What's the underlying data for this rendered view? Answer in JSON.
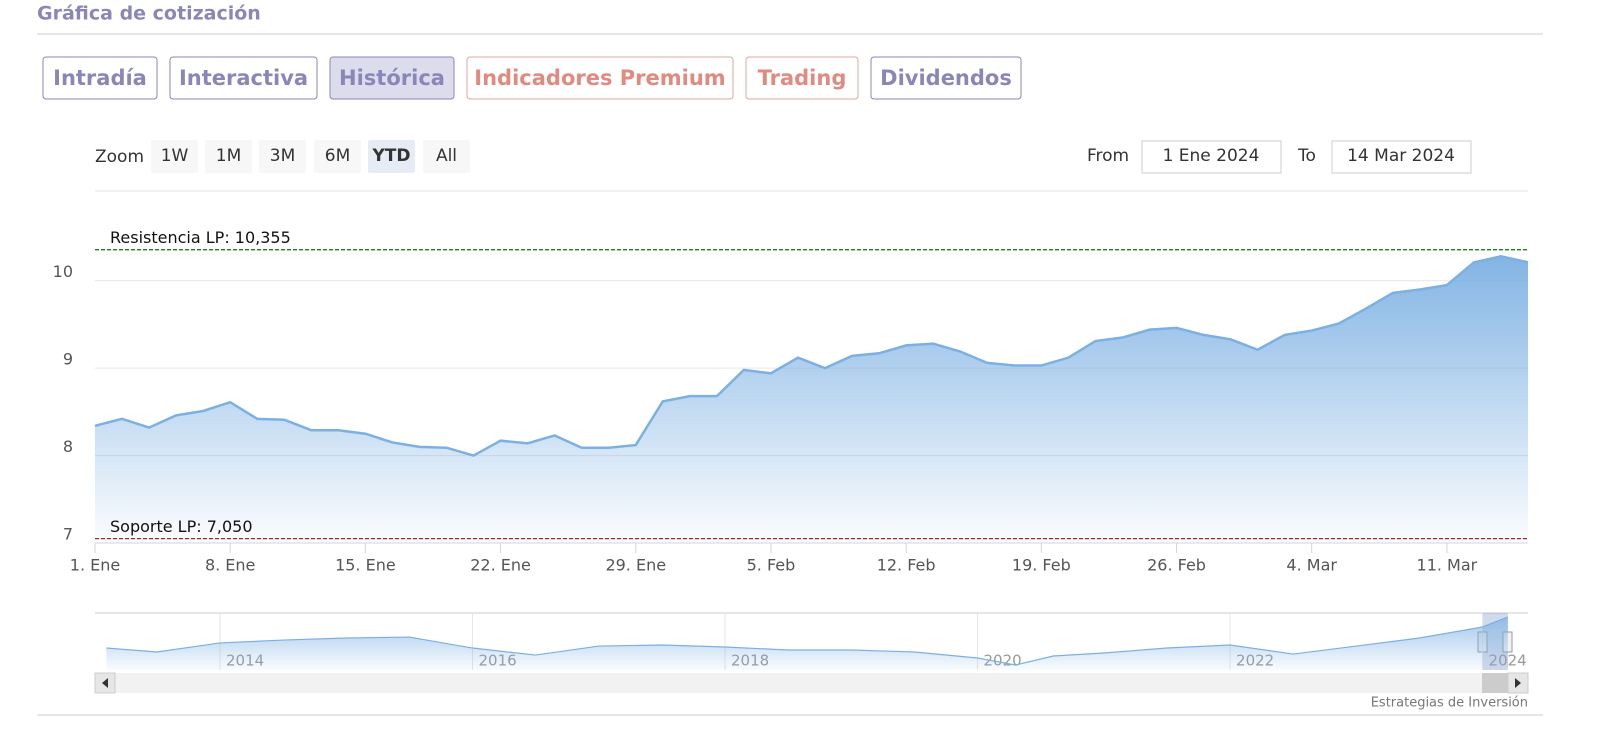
{
  "header": {
    "title": "Gráfica de cotización"
  },
  "tabs": [
    "Intradía",
    "Interactiva",
    "Histórica",
    "Indicadores Premium",
    "Trading",
    "Dividendos"
  ],
  "active_tab": 2,
  "premium_tabs": [
    3,
    4
  ],
  "zoom": {
    "label": "Zoom",
    "buttons": [
      "1W",
      "1M",
      "3M",
      "6M",
      "YTD",
      "All"
    ],
    "active": 4
  },
  "range": {
    "from_label": "From",
    "from": "1 Ene 2024",
    "to_label": "To",
    "to": "14 Mar 2024"
  },
  "chart_data": [
    {
      "type": "area",
      "color": "#7cb0e3",
      "categories": [
        "1. Ene",
        null,
        null,
        null,
        null,
        "8. Ene",
        null,
        null,
        null,
        null,
        "15. Ene",
        null,
        null,
        null,
        null,
        "22. Ene",
        null,
        null,
        null,
        null,
        "29. Ene",
        null,
        null,
        null,
        null,
        "5. Feb",
        null,
        null,
        null,
        null,
        "12. Feb",
        null,
        null,
        null,
        null,
        "19. Feb",
        null,
        null,
        null,
        null,
        "26. Feb",
        null,
        null,
        null,
        null,
        "4. Mar",
        null,
        null,
        null,
        null,
        "11. Mar",
        null,
        null,
        null
      ],
      "values": [
        8.34,
        8.42,
        8.32,
        8.46,
        8.51,
        8.61,
        8.42,
        8.41,
        8.29,
        8.29,
        8.25,
        8.15,
        8.1,
        8.09,
        8.0,
        8.17,
        8.14,
        8.23,
        8.09,
        8.09,
        8.12,
        8.62,
        8.68,
        8.68,
        8.98,
        8.94,
        9.12,
        9.0,
        9.14,
        9.17,
        9.26,
        9.28,
        9.19,
        9.06,
        9.03,
        9.03,
        9.12,
        9.31,
        9.35,
        9.44,
        9.46,
        9.38,
        9.33,
        9.21,
        9.38,
        9.43,
        9.51,
        9.68,
        9.86,
        9.9,
        9.95,
        10.21,
        10.28,
        10.21
      ],
      "ylim": [
        7,
        10.5
      ],
      "yticks": [
        7,
        8,
        9,
        10
      ],
      "grid": true,
      "plot_lines": [
        {
          "value": 10.355,
          "label": "Resistencia LP: 10,355",
          "color": "#1b7d1b"
        },
        {
          "value": 7.05,
          "label": "Soporte LP: 7,050",
          "color": "#b22222"
        }
      ]
    },
    {
      "type": "navigator",
      "color": "#7cb0e3",
      "x": [
        2013.1,
        2013.5,
        2014.0,
        2014.5,
        2015.0,
        2015.5,
        2016.0,
        2016.5,
        2017.0,
        2017.5,
        2018.0,
        2018.5,
        2019.0,
        2019.5,
        2020.0,
        2020.3,
        2020.6,
        2021.0,
        2021.5,
        2022.0,
        2022.5,
        2023.0,
        2023.5,
        2024.0,
        2024.2
      ],
      "values": [
        7.12,
        6.74,
        7.61,
        7.89,
        8.09,
        8.18,
        7.12,
        6.44,
        7.31,
        7.41,
        7.22,
        6.93,
        6.93,
        6.74,
        6.16,
        5.48,
        6.35,
        6.64,
        7.12,
        7.41,
        6.54,
        7.31,
        8.09,
        9.15,
        10.11
      ],
      "xlim": [
        2013.01,
        2024.36
      ],
      "ylim": [
        5,
        10.5
      ],
      "xticks": [
        2014,
        2016,
        2018,
        2020,
        2022,
        2024
      ]
    }
  ],
  "credit": "Estrategias de Inversión"
}
